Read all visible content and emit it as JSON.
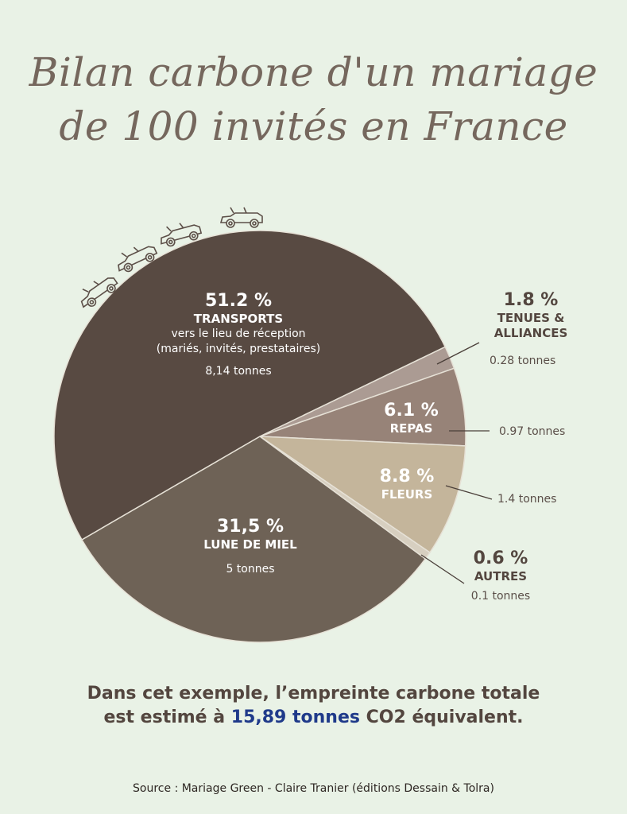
{
  "header": {
    "title_line1": "Bilan carbone d'un mariage",
    "title_line2": "de 100 invités en France"
  },
  "chart_data": {
    "type": "pie",
    "title": "Bilan carbone d'un mariage de 100 invités en France",
    "unit": "tonnes CO2 équivalent",
    "start_angle_deg": -25.8,
    "slices": [
      {
        "key": "tenues",
        "label": "TENUES & ALLIANCES",
        "percent": 1.8,
        "percent_label": "1.8 %",
        "tonnes": 0.28,
        "tonnes_label": "0.28 tonnes",
        "color": "#ab9b93"
      },
      {
        "key": "repas",
        "label": "REPAS",
        "percent": 6.1,
        "percent_label": "6.1 %",
        "tonnes": 0.97,
        "tonnes_label": "0.97 tonnes",
        "color": "#978378"
      },
      {
        "key": "fleurs",
        "label": "FLEURS",
        "percent": 8.8,
        "percent_label": "8.8 %",
        "tonnes": 1.4,
        "tonnes_label": "1.4 tonnes",
        "color": "#c4b59b"
      },
      {
        "key": "autres",
        "label": "AUTRES",
        "percent": 0.6,
        "percent_label": "0.6 %",
        "tonnes": 0.1,
        "tonnes_label": "0.1 tonnes",
        "color": "#d7cfc0"
      },
      {
        "key": "lune",
        "label": "LUNE DE MIEL",
        "percent": 31.5,
        "percent_label": "31,5 %",
        "tonnes": 5,
        "tonnes_label": "5 tonnes",
        "color": "#6e6256"
      },
      {
        "key": "transports",
        "label": "TRANSPORTS",
        "sublabel1": "vers le lieu de réception",
        "sublabel2": "(mariés, invités, prestataires)",
        "percent": 51.2,
        "percent_label": "51.2 %",
        "tonnes": 8.14,
        "tonnes_label": "8,14 tonnes",
        "color": "#584a42"
      }
    ],
    "labels": {
      "transports": {
        "pct": "51.2 %",
        "cat": "TRANSPORTS",
        "sub1": "vers le lieu de réception",
        "sub2": "(mariés, invités, prestataires)",
        "ton": "8,14 tonnes"
      },
      "tenues": {
        "pct": "1.8 %",
        "cat1": "TENUES &",
        "cat2": "ALLIANCES",
        "ton": "0.28 tonnes"
      },
      "repas": {
        "pct": "6.1 %",
        "cat": "REPAS",
        "ton": "0.97 tonnes"
      },
      "fleurs": {
        "pct": "8.8 %",
        "cat": "FLEURS",
        "ton": "1.4 tonnes"
      },
      "autres": {
        "pct": "0.6 %",
        "cat": "AUTRES",
        "ton": "0.1 tonnes"
      },
      "lune": {
        "pct": "31,5 %",
        "cat": "LUNE DE MIEL",
        "ton": "5 tonnes"
      }
    },
    "total_tonnes": 15.89,
    "decorations": {
      "icon": "car-icon",
      "count": 4
    }
  },
  "summary": {
    "line1": "Dans cet exemple, l’empreinte carbone totale",
    "line2_pre": "est estimé à ",
    "line2_highlight": "15,89 tonnes",
    "line2_post": " CO2 équivalent.",
    "highlight_color": "#1f3a8a"
  },
  "footer": {
    "source": "Source : Mariage Green - Claire Tranier (éditions Dessain & Tolra)"
  }
}
